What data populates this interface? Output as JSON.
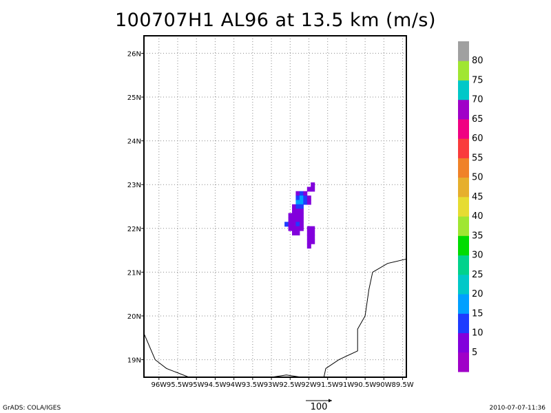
{
  "title": "100707H1 AL96 at 13.5 km (m/s)",
  "footer": {
    "left": "GrADS: COLA/IGES",
    "right": "2010-07-07-11:36"
  },
  "vector_reference": {
    "label": "100"
  },
  "chart_data": {
    "type": "heatmap",
    "title": "100707H1 AL96 at 13.5 km (m/s)",
    "xlim": [
      -96.4,
      -89.4
    ],
    "ylim": [
      18.6,
      26.4
    ],
    "x_ticks": [
      {
        "v": -96,
        "label": "96W"
      },
      {
        "v": -95.5,
        "label": "95.5W"
      },
      {
        "v": -95,
        "label": "95W"
      },
      {
        "v": -94.5,
        "label": "94.5W"
      },
      {
        "v": -94,
        "label": "94W"
      },
      {
        "v": -93.5,
        "label": "93.5W"
      },
      {
        "v": -93,
        "label": "93W"
      },
      {
        "v": -92.5,
        "label": "92.5W"
      },
      {
        "v": -92,
        "label": "92W"
      },
      {
        "v": -91.5,
        "label": "91.5W"
      },
      {
        "v": -91,
        "label": "91W"
      },
      {
        "v": -90.5,
        "label": "90.5W"
      },
      {
        "v": -90,
        "label": "90W"
      },
      {
        "v": -89.5,
        "label": "89.5W"
      }
    ],
    "y_ticks": [
      {
        "v": 19,
        "label": "19N"
      },
      {
        "v": 20,
        "label": "20N"
      },
      {
        "v": 21,
        "label": "21N"
      },
      {
        "v": 22,
        "label": "22N"
      },
      {
        "v": 23,
        "label": "23N"
      },
      {
        "v": 24,
        "label": "24N"
      },
      {
        "v": 25,
        "label": "25N"
      },
      {
        "v": 26,
        "label": "26N"
      }
    ],
    "grid": true,
    "colorbar": {
      "labels": [
        "5",
        "10",
        "15",
        "20",
        "25",
        "30",
        "35",
        "40",
        "45",
        "50",
        "55",
        "60",
        "65",
        "70",
        "75",
        "80"
      ],
      "colors": [
        "#a000c8",
        "#8200dc",
        "#1e3cff",
        "#00a0ff",
        "#00c8c8",
        "#00d28c",
        "#00dc00",
        "#a0e632",
        "#e6dc32",
        "#e6af2d",
        "#f08228",
        "#fa3c3c",
        "#f00082",
        "#a000c8",
        "#00c8c8",
        "#a0e632",
        "#a0a0a0"
      ]
    },
    "cells": [
      {
        "lon": -91.9,
        "lat": 23.0,
        "v": 5
      },
      {
        "lon": -92.0,
        "lat": 22.9,
        "v": 5
      },
      {
        "lon": -91.9,
        "lat": 22.9,
        "v": 5
      },
      {
        "lon": -92.3,
        "lat": 22.8,
        "v": 5
      },
      {
        "lon": -92.2,
        "lat": 22.8,
        "v": 10
      },
      {
        "lon": -92.1,
        "lat": 22.8,
        "v": 5
      },
      {
        "lon": -92.3,
        "lat": 22.7,
        "v": 10
      },
      {
        "lon": -92.2,
        "lat": 22.7,
        "v": 15
      },
      {
        "lon": -92.1,
        "lat": 22.7,
        "v": 10
      },
      {
        "lon": -92.0,
        "lat": 22.7,
        "v": 5
      },
      {
        "lon": -92.3,
        "lat": 22.6,
        "v": 15
      },
      {
        "lon": -92.2,
        "lat": 22.6,
        "v": 15
      },
      {
        "lon": -92.1,
        "lat": 22.6,
        "v": 10
      },
      {
        "lon": -92.0,
        "lat": 22.6,
        "v": 5
      },
      {
        "lon": -92.4,
        "lat": 22.5,
        "v": 5
      },
      {
        "lon": -92.3,
        "lat": 22.5,
        "v": 10
      },
      {
        "lon": -92.2,
        "lat": 22.5,
        "v": 10
      },
      {
        "lon": -92.4,
        "lat": 22.4,
        "v": 5
      },
      {
        "lon": -92.3,
        "lat": 22.4,
        "v": 5
      },
      {
        "lon": -92.2,
        "lat": 22.4,
        "v": 5
      },
      {
        "lon": -92.5,
        "lat": 22.3,
        "v": 5
      },
      {
        "lon": -92.4,
        "lat": 22.3,
        "v": 5
      },
      {
        "lon": -92.3,
        "lat": 22.3,
        "v": 5
      },
      {
        "lon": -92.2,
        "lat": 22.3,
        "v": 5
      },
      {
        "lon": -92.5,
        "lat": 22.2,
        "v": 5
      },
      {
        "lon": -92.4,
        "lat": 22.2,
        "v": 5
      },
      {
        "lon": -92.3,
        "lat": 22.2,
        "v": 5
      },
      {
        "lon": -92.2,
        "lat": 22.2,
        "v": 5
      },
      {
        "lon": -92.6,
        "lat": 22.1,
        "v": 10
      },
      {
        "lon": -92.5,
        "lat": 22.1,
        "v": 5
      },
      {
        "lon": -92.4,
        "lat": 22.1,
        "v": 5
      },
      {
        "lon": -92.3,
        "lat": 22.1,
        "v": 10
      },
      {
        "lon": -92.2,
        "lat": 22.1,
        "v": 5
      },
      {
        "lon": -92.5,
        "lat": 22.0,
        "v": 5
      },
      {
        "lon": -92.4,
        "lat": 22.0,
        "v": 5
      },
      {
        "lon": -92.3,
        "lat": 22.0,
        "v": 5
      },
      {
        "lon": -92.2,
        "lat": 22.0,
        "v": 5
      },
      {
        "lon": -92.0,
        "lat": 22.0,
        "v": 5
      },
      {
        "lon": -91.9,
        "lat": 22.0,
        "v": 5
      },
      {
        "lon": -92.4,
        "lat": 21.9,
        "v": 5
      },
      {
        "lon": -92.3,
        "lat": 21.9,
        "v": 5
      },
      {
        "lon": -92.0,
        "lat": 21.9,
        "v": 5
      },
      {
        "lon": -91.9,
        "lat": 21.9,
        "v": 5
      },
      {
        "lon": -92.0,
        "lat": 21.8,
        "v": 5
      },
      {
        "lon": -91.9,
        "lat": 21.8,
        "v": 5
      },
      {
        "lon": -92.0,
        "lat": 21.7,
        "v": 5
      },
      {
        "lon": -91.9,
        "lat": 21.7,
        "v": 5
      },
      {
        "lon": -92.0,
        "lat": 21.6,
        "v": 5
      }
    ],
    "coastlines": [
      [
        [
          -96.4,
          19.6
        ],
        [
          -96.1,
          19.0
        ],
        [
          -95.8,
          18.8
        ],
        [
          -95.2,
          18.6
        ]
      ],
      [
        [
          -93.0,
          18.6
        ],
        [
          -92.6,
          18.65
        ],
        [
          -92.2,
          18.6
        ]
      ],
      [
        [
          -91.6,
          18.6
        ],
        [
          -91.55,
          18.8
        ],
        [
          -91.2,
          19.0
        ],
        [
          -90.7,
          19.2
        ],
        [
          -90.7,
          19.7
        ],
        [
          -90.5,
          20.0
        ],
        [
          -90.4,
          20.6
        ],
        [
          -90.3,
          21.0
        ],
        [
          -89.9,
          21.2
        ],
        [
          -89.4,
          21.3
        ]
      ]
    ]
  }
}
